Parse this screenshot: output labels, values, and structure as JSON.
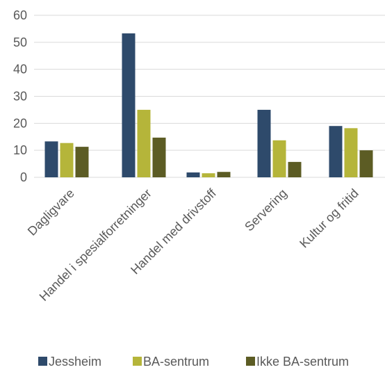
{
  "chart_data": {
    "type": "bar",
    "categories": [
      "Dagligvare",
      "Handel i spesialforretninger",
      "Handel med drivstoff",
      "Servering",
      "Kultur og fritid"
    ],
    "series": [
      {
        "name": "Jessheim",
        "values": [
          13.3,
          53.3,
          1.8,
          25.0,
          19.0
        ],
        "color": "#2e4a6b"
      },
      {
        "name": "BA-sentrum",
        "values": [
          12.7,
          25.0,
          1.5,
          13.7,
          18.2
        ],
        "color": "#b5b53a"
      },
      {
        "name": "Ikke BA-sentrum",
        "values": [
          11.3,
          14.7,
          2.0,
          5.7,
          10.0
        ],
        "color": "#5c5c24"
      }
    ],
    "yticks": [
      0,
      10,
      20,
      30,
      40,
      50,
      60
    ],
    "ylim": [
      0,
      60
    ],
    "grid": true,
    "legend": "bottom",
    "title": "",
    "xlabel": "",
    "ylabel": ""
  }
}
